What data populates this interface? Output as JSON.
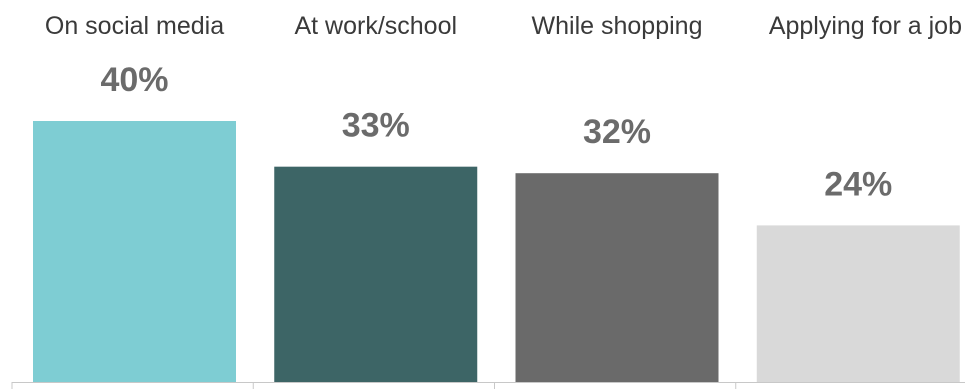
{
  "chart_data": {
    "type": "bar",
    "categories": [
      "On social media",
      "At work/school",
      "While shopping",
      "Applying for a job"
    ],
    "values": [
      40,
      33,
      32,
      24
    ],
    "value_labels": [
      "40%",
      "33%",
      "32%",
      "24%"
    ],
    "colors": [
      "#7ecdd3",
      "#3d6566",
      "#6a6a6a",
      "#d9d9d9"
    ],
    "title": "",
    "xlabel": "",
    "ylabel": "",
    "ylim": [
      0,
      40
    ],
    "grid": false,
    "legend": "none"
  }
}
